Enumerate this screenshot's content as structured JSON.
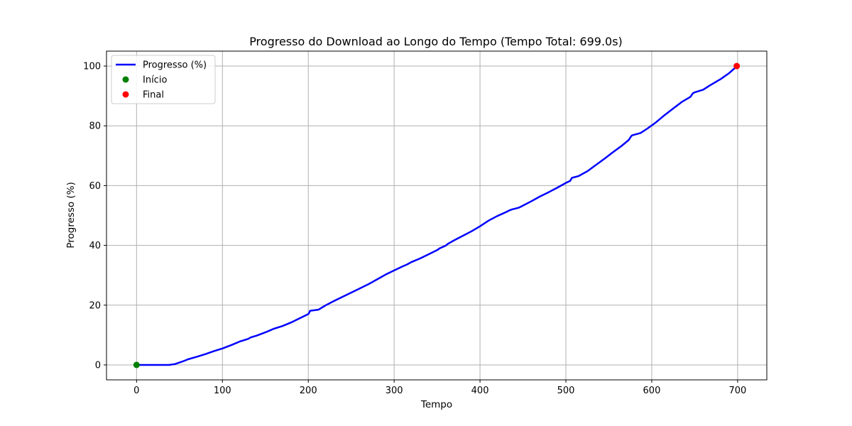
{
  "chart_data": {
    "type": "line",
    "title": "Progresso do Download ao Longo do Tempo (Tempo Total: 699.0s)",
    "xlabel": "Tempo",
    "ylabel": "Progresso (%)",
    "xlim": [
      -35,
      734
    ],
    "ylim": [
      -5,
      105
    ],
    "xticks": [
      0,
      100,
      200,
      300,
      400,
      500,
      600,
      700
    ],
    "yticks": [
      0,
      20,
      40,
      60,
      80,
      100
    ],
    "grid": true,
    "legend_position": "top-left",
    "series": [
      {
        "name": "Progresso (%)",
        "kind": "line",
        "color": "#0000ff",
        "x": [
          0,
          10,
          20,
          30,
          38,
          45,
          50,
          55,
          60,
          70,
          80,
          90,
          100,
          110,
          120,
          130,
          133,
          140,
          150,
          160,
          170,
          180,
          190,
          200,
          201,
          202,
          212,
          220,
          230,
          240,
          250,
          260,
          270,
          280,
          290,
          300,
          310,
          315,
          320,
          330,
          340,
          350,
          353,
          356,
          360,
          363,
          365,
          370,
          380,
          390,
          400,
          410,
          420,
          430,
          435,
          437,
          445,
          450,
          460,
          470,
          480,
          490,
          500,
          505,
          507,
          515,
          525,
          535,
          545,
          555,
          565,
          573,
          576,
          577,
          587,
          595,
          605,
          615,
          625,
          635,
          645,
          648,
          650,
          660,
          667,
          680,
          690,
          699
        ],
        "y": [
          0,
          0,
          0,
          0,
          0,
          0.3,
          0.8,
          1.3,
          1.9,
          2.7,
          3.6,
          4.6,
          5.5,
          6.6,
          7.8,
          8.7,
          9.2,
          9.8,
          10.9,
          12.1,
          13.0,
          14.2,
          15.6,
          17.0,
          17.4,
          18.1,
          18.5,
          19.9,
          21.4,
          22.8,
          24.2,
          25.6,
          27.0,
          28.6,
          30.2,
          31.6,
          33.0,
          33.6,
          34.4,
          35.6,
          37.0,
          38.4,
          39.0,
          39.4,
          39.9,
          40.6,
          40.9,
          41.7,
          43.2,
          44.7,
          46.4,
          48.3,
          49.8,
          51.1,
          51.8,
          52.0,
          52.6,
          53.3,
          54.8,
          56.4,
          57.8,
          59.3,
          60.9,
          61.6,
          62.6,
          63.2,
          64.8,
          66.9,
          69.0,
          71.2,
          73.3,
          75.2,
          76.5,
          76.8,
          77.6,
          79.1,
          81.2,
          83.6,
          85.8,
          88.0,
          89.7,
          90.9,
          91.2,
          92.1,
          93.4,
          95.6,
          97.6,
          99.9
        ]
      },
      {
        "name": "Início",
        "kind": "scatter",
        "color": "#008000",
        "x": [
          0
        ],
        "y": [
          0
        ]
      },
      {
        "name": "Final",
        "kind": "scatter",
        "color": "#ff0000",
        "x": [
          699
        ],
        "y": [
          100
        ]
      }
    ]
  }
}
